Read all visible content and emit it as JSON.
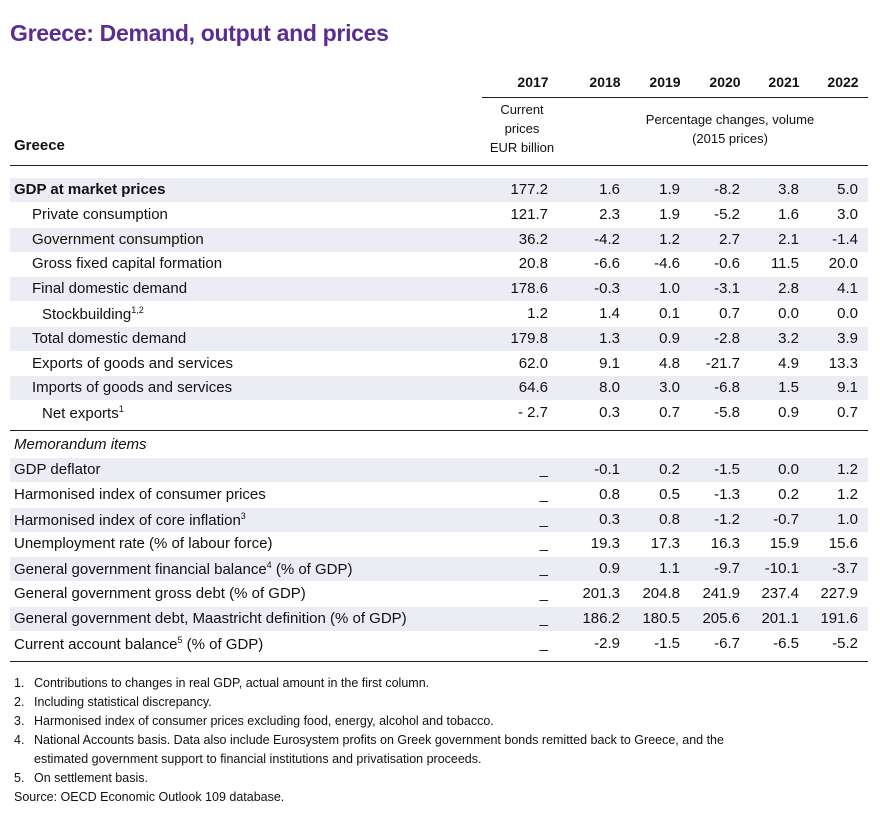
{
  "title": "Greece: Demand, output and prices",
  "header": {
    "years": [
      "2017",
      "2018",
      "2019",
      "2020",
      "2021",
      "2022"
    ],
    "row_header": "Greece",
    "current_prices": [
      "Current",
      "prices",
      "EUR billion"
    ],
    "percentage_changes": [
      "Percentage changes, volume",
      "(2015 prices)"
    ]
  },
  "rows": [
    {
      "label": "GDP at market prices",
      "values": [
        "177.2",
        "1.6",
        "1.9",
        "-8.2",
        "3.8",
        "5.0"
      ]
    },
    {
      "label": "Private consumption",
      "values": [
        "121.7",
        "2.3",
        "1.9",
        "-5.2",
        "1.6",
        "3.0"
      ]
    },
    {
      "label": "Government consumption",
      "values": [
        "36.2",
        "-4.2",
        "1.2",
        "2.7",
        "2.1",
        "-1.4"
      ]
    },
    {
      "label": "Gross fixed capital formation",
      "values": [
        "20.8",
        "-6.6",
        "-4.6",
        "-0.6",
        "11.5",
        "20.0"
      ]
    },
    {
      "label": "Final domestic demand",
      "values": [
        "178.6",
        "-0.3",
        "1.0",
        "-3.1",
        "2.8",
        "4.1"
      ]
    },
    {
      "label": "Stockbuilding",
      "sup": "1,2",
      "values": [
        "1.2",
        "1.4",
        "0.1",
        "0.7",
        "0.0",
        "0.0"
      ]
    },
    {
      "label": "Total domestic demand",
      "values": [
        "179.8",
        "1.3",
        "0.9",
        "-2.8",
        "3.2",
        "3.9"
      ]
    },
    {
      "label": "Exports of goods and services",
      "values": [
        "62.0",
        "9.1",
        "4.8",
        "-21.7",
        "4.9",
        "13.3"
      ]
    },
    {
      "label": "Imports of goods and services",
      "values": [
        "64.6",
        "8.0",
        "3.0",
        "-6.8",
        "1.5",
        "9.1"
      ]
    },
    {
      "label": "Net exports",
      "sup": "1",
      "values": [
        "- 2.7",
        "0.3",
        "0.7",
        "-5.8",
        "0.9",
        "0.7"
      ]
    }
  ],
  "memo": {
    "title": "Memorandum items",
    "rows": [
      {
        "label": "GDP deflator",
        "values": [
          "_",
          "-0.1",
          "0.2",
          "-1.5",
          "0.0",
          "1.2"
        ]
      },
      {
        "label": "Harmonised index of consumer prices",
        "values": [
          "_",
          "0.8",
          "0.5",
          "-1.3",
          "0.2",
          "1.2"
        ]
      },
      {
        "label": "Harmonised index of core inflation",
        "sup": "3",
        "values": [
          "_",
          "0.3",
          "0.8",
          "-1.2",
          "-0.7",
          "1.0"
        ]
      },
      {
        "label": "Unemployment rate (% of labour force)",
        "values": [
          "_",
          "19.3",
          "17.3",
          "16.3",
          "15.9",
          "15.6"
        ]
      },
      {
        "label": "General government financial balance",
        "sup": "4",
        "suffix": " (% of GDP)",
        "values": [
          "_",
          "0.9",
          "1.1",
          "-9.7",
          "-10.1",
          "-3.7"
        ]
      },
      {
        "label": "General government gross debt (% of GDP)",
        "values": [
          "_",
          "201.3",
          "204.8",
          "241.9",
          "237.4",
          "227.9"
        ]
      },
      {
        "label": "General government debt, Maastricht definition (% of GDP)",
        "values": [
          "_",
          "186.2",
          "180.5",
          "205.6",
          "201.1",
          "191.6"
        ]
      },
      {
        "label": "Current account balance",
        "sup": "5",
        "suffix": " (% of GDP)",
        "values": [
          "_",
          "-2.9",
          "-1.5",
          "-6.7",
          "-6.5",
          "-5.2"
        ]
      }
    ]
  },
  "footnotes": [
    {
      "number": "1.",
      "lines": [
        "Contributions to changes in real GDP, actual amount in the first column."
      ]
    },
    {
      "number": "2.",
      "lines": [
        "Including statistical discrepancy."
      ]
    },
    {
      "number": "3.",
      "lines": [
        "Harmonised index of consumer prices excluding food, energy, alcohol and tobacco."
      ]
    },
    {
      "number": "4.",
      "lines": [
        "National Accounts basis. Data also include Eurosystem profits on Greek government bonds remitted back to Greece, and the",
        "estimated government support to financial institutions and privatisation proceeds."
      ]
    },
    {
      "number": "5.",
      "lines": [
        "On settlement basis."
      ]
    }
  ],
  "source": "Source:  OECD Economic Outlook 109 database."
}
